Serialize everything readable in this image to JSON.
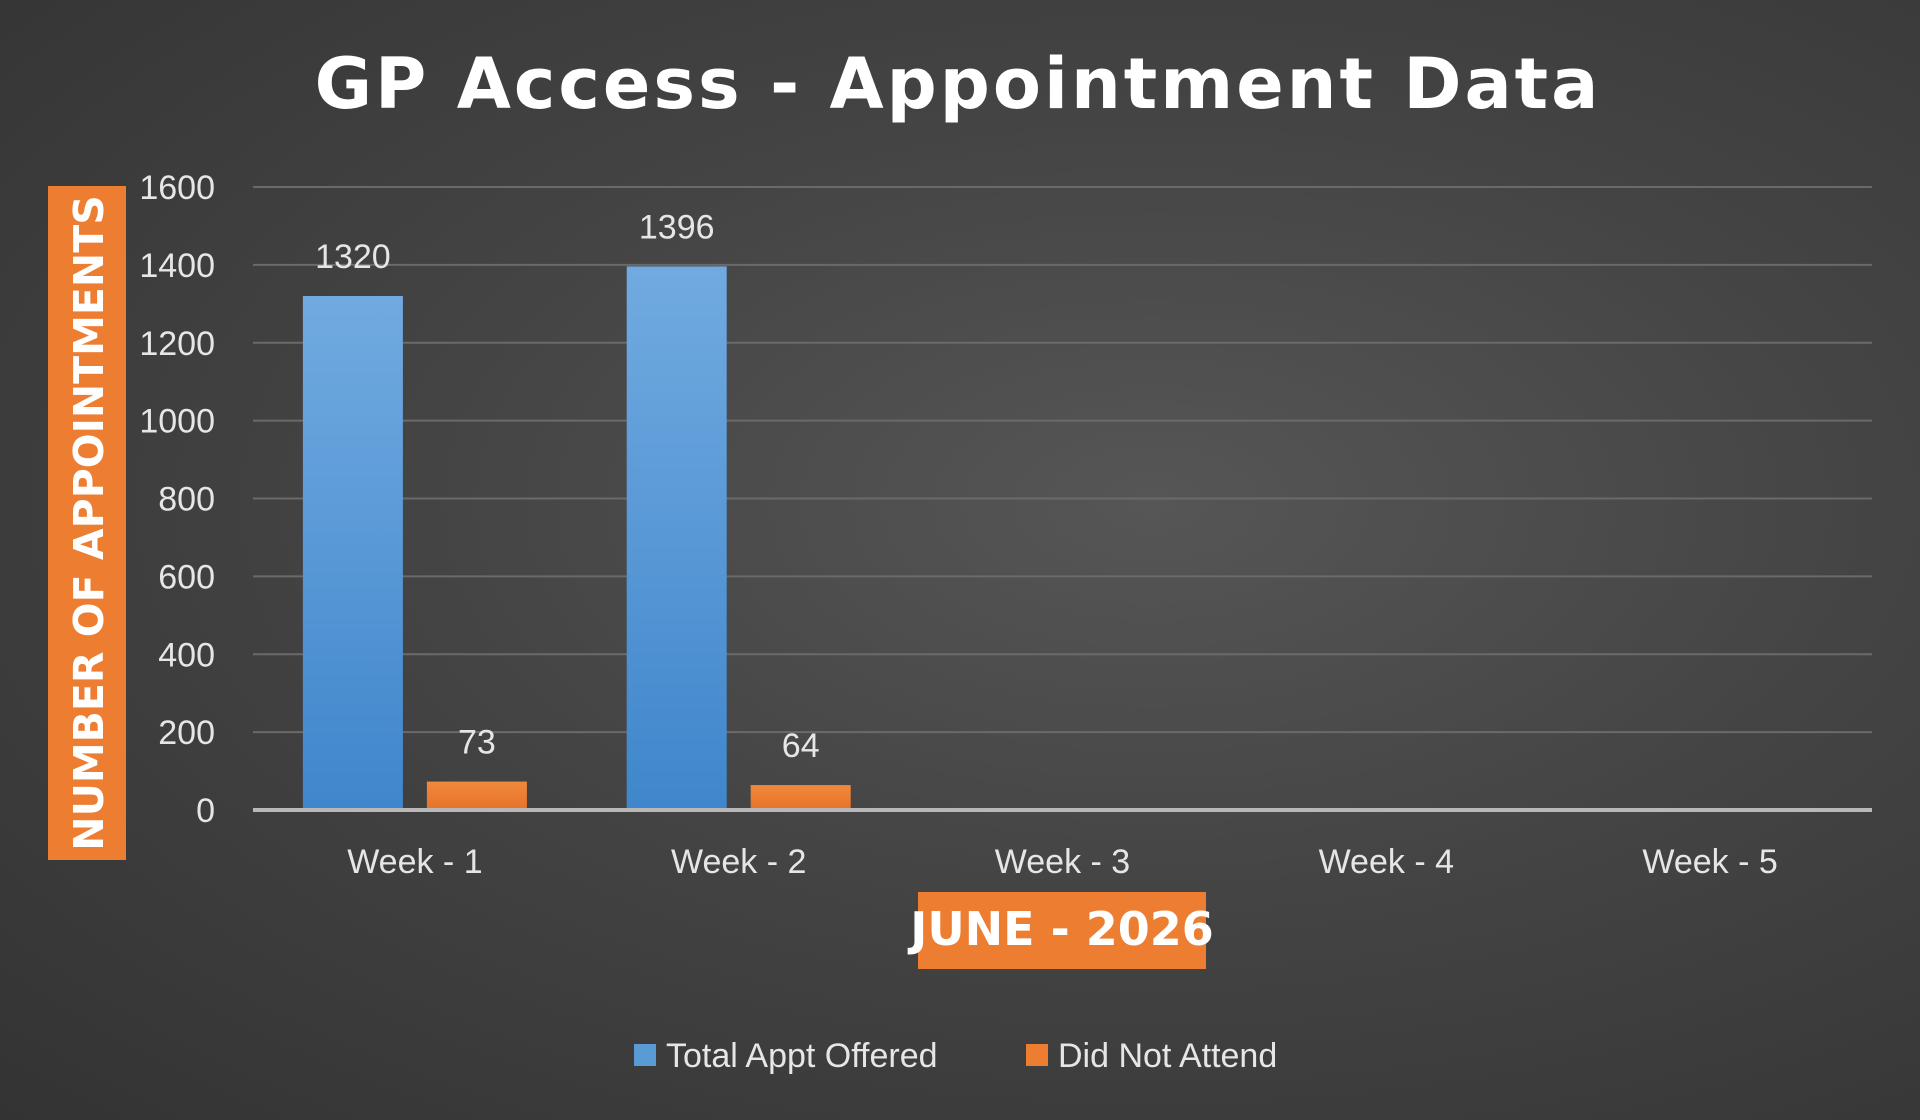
{
  "chart_data": {
    "type": "bar",
    "title": "GP Access - Appointment Data",
    "xlabel": "JUNE - 2026",
    "ylabel": "NUMBER OF APPOINTMENTS",
    "categories": [
      "Week - 1",
      "Week - 2",
      "Week - 3",
      "Week - 4",
      "Week - 5"
    ],
    "series": [
      {
        "name": "Total Appt Offered",
        "values": [
          1320,
          1396,
          null,
          null,
          null
        ],
        "color": "#5b9bd5"
      },
      {
        "name": "Did Not Attend",
        "values": [
          73,
          64,
          null,
          null,
          null
        ],
        "color": "#ed7d31"
      }
    ],
    "ylim": [
      0,
      1600
    ],
    "yticks": [
      0,
      200,
      400,
      600,
      800,
      1000,
      1200,
      1400,
      1600
    ],
    "grid": true,
    "legend": "bottom",
    "data_labels": true,
    "colors": {
      "accent": "#ed7d31",
      "axis_box": "#ed7d31"
    }
  }
}
